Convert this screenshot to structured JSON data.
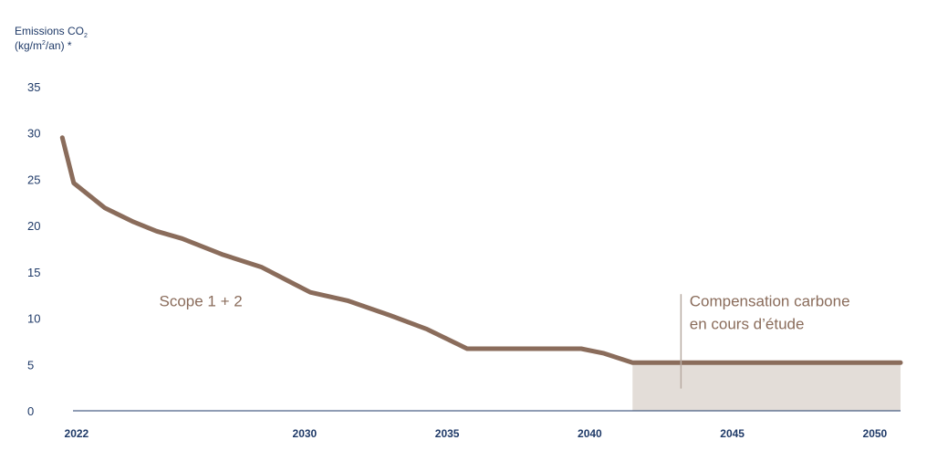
{
  "colors": {
    "line": "#8a6c5b",
    "offset_area": "#e3ddd8",
    "axis": "#1f3a68",
    "annotation_rule": "#b8aba2"
  },
  "chart_data": {
    "type": "line",
    "title": "",
    "ylabel": {
      "line1_main": "Emissions CO",
      "line1_sub": "2",
      "line2_a": "(kg/m",
      "line2_sup": "2",
      "line2_b": "/an) *"
    },
    "xlabel": "",
    "xlim": [
      2021.3,
      2050.9
    ],
    "ylim": [
      0,
      35
    ],
    "y_ticks": [
      "0",
      "5",
      "10",
      "15",
      "20",
      "25",
      "30",
      "35"
    ],
    "y_tick_values": [
      0,
      5,
      10,
      15,
      20,
      25,
      30,
      35
    ],
    "x_ticks": [
      "2022",
      "2030",
      "2035",
      "2040",
      "2045",
      "2050"
    ],
    "x_tick_values": [
      2022,
      2030,
      2035,
      2040,
      2045,
      2050
    ],
    "grid": false,
    "series": [
      {
        "points": [
          [
            2021.5,
            29.5
          ],
          [
            2021.9,
            24.6
          ],
          [
            2023.0,
            21.9
          ],
          [
            2024.0,
            20.4
          ],
          [
            2024.8,
            19.4
          ],
          [
            2025.7,
            18.6
          ],
          [
            2027.1,
            16.9
          ],
          [
            2028.5,
            15.5
          ],
          [
            2029.5,
            13.9
          ],
          [
            2030.2,
            12.8
          ],
          [
            2031.5,
            11.9
          ],
          [
            2033.0,
            10.3
          ],
          [
            2034.3,
            8.8
          ],
          [
            2035.7,
            6.7
          ],
          [
            2039.7,
            6.7
          ],
          [
            2040.5,
            6.2
          ],
          [
            2041.5,
            5.2
          ],
          [
            2050.9,
            5.2
          ]
        ]
      }
    ],
    "offset_band": {
      "x_start": 2041.5,
      "x_end": 2050.9,
      "y_value": 5.2
    },
    "annotations": {
      "scope": {
        "text": "Scope 1 + 2",
        "x": 2024.9,
        "y": 11.9
      },
      "compensation": {
        "line1": "Compensation carbone",
        "line2": "en cours d’étude",
        "x": 2043.5,
        "y": 11.9,
        "rule_x": 2043.2,
        "rule_y_top": 12.6,
        "rule_y_bottom": 2.4
      }
    }
  }
}
